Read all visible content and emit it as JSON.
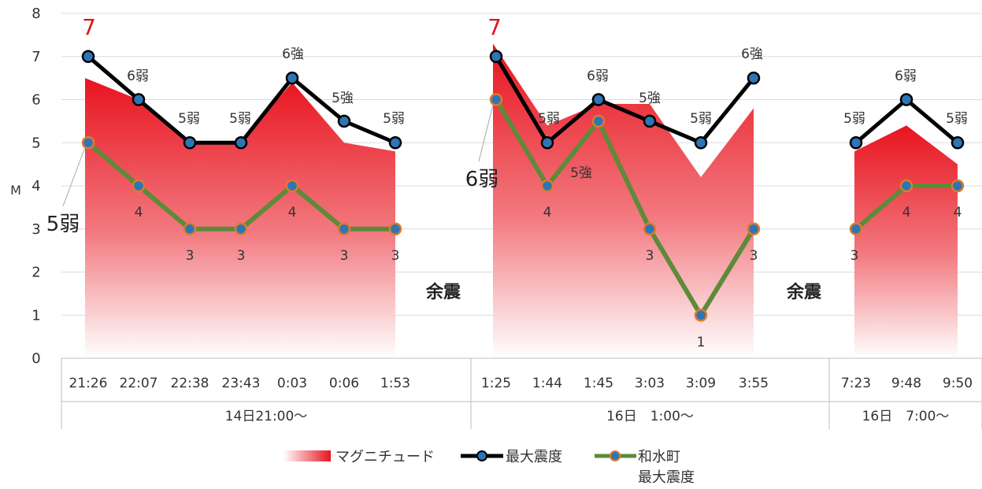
{
  "chart_data": {
    "type": "line",
    "ylabel": "M",
    "ylim": [
      0,
      8
    ],
    "yticks": [
      "0",
      "1",
      "2",
      "3",
      "4",
      "5",
      "6",
      "7",
      "8"
    ],
    "grid": true,
    "legend_position": "bottom",
    "groups": [
      {
        "label": "14日21:00～",
        "categories": [
          "21:26",
          "22:07",
          "22:38",
          "23:43",
          "0:03",
          "0:06",
          "1:53"
        ],
        "magnitude": [
          6.5,
          6.0,
          5.0,
          5.0,
          6.4,
          5.0,
          4.8
        ],
        "max_intensity": [
          7,
          6,
          5,
          5,
          6.5,
          5.5,
          5
        ],
        "max_intensity_labels": [
          "7",
          "6弱",
          "5弱",
          "5弱",
          "6強",
          "5強",
          "5弱"
        ],
        "town_intensity": [
          5,
          4,
          3,
          3,
          4,
          3,
          3
        ],
        "town_intensity_labels": [
          "5弱",
          "4",
          "3",
          "3",
          "4",
          "3",
          "3"
        ]
      },
      {
        "label": "16日　1:00～",
        "categories": [
          "1:25",
          "1:44",
          "1:45",
          "3:03",
          "3:09",
          "3:55"
        ],
        "magnitude": [
          7.3,
          5.4,
          5.9,
          5.9,
          4.2,
          5.8
        ],
        "max_intensity": [
          7,
          5,
          6,
          5.5,
          5,
          6.5
        ],
        "max_intensity_labels": [
          "7",
          "5弱",
          "6弱",
          "5強",
          "5弱",
          "6強"
        ],
        "town_intensity": [
          6,
          4,
          5.5,
          3,
          1,
          3
        ],
        "town_intensity_labels": [
          "6弱",
          "4",
          "5強",
          "3",
          "1",
          "3"
        ]
      },
      {
        "label": "16日　7:00～",
        "categories": [
          "7:23",
          "9:48",
          "9:50"
        ],
        "magnitude": [
          4.8,
          5.4,
          4.5
        ],
        "max_intensity": [
          5,
          6,
          5
        ],
        "max_intensity_labels": [
          "5弱",
          "6弱",
          "5弱"
        ],
        "town_intensity": [
          3,
          4,
          4
        ],
        "town_intensity_labels": [
          "3",
          "4",
          "4"
        ]
      }
    ],
    "annotations": [
      "余震",
      "余震"
    ],
    "series": [
      {
        "name": "マグニチュード",
        "type": "area",
        "color": "#e8141f"
      },
      {
        "name": "最大震度",
        "type": "line",
        "color": "#000000",
        "marker_color": "#2e75b6"
      },
      {
        "name": "和水町\n最大震度",
        "type": "line",
        "color": "#5e8a3a",
        "marker_color": "#2e75b6",
        "marker_edge": "#e07a2a"
      }
    ],
    "legend": {
      "magnitude": "マグニチュード",
      "max_intensity": "最大震度",
      "town_line1": "和水町",
      "town_line2": "最大震度"
    }
  }
}
